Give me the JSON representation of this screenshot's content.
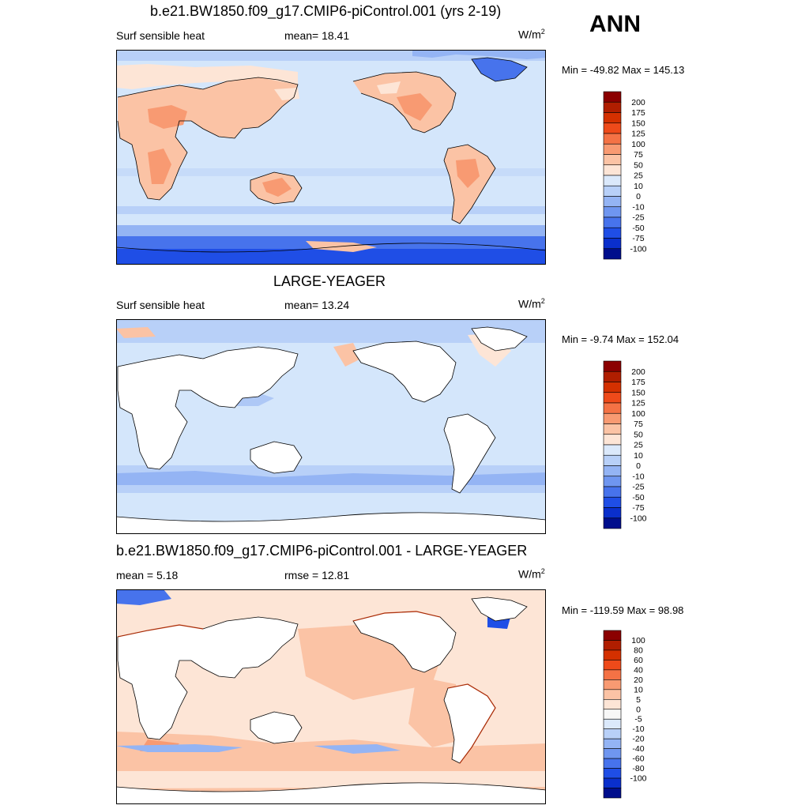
{
  "season": "ANN",
  "panels": [
    {
      "title": "b.e21.BW1850.f09_g17.CMIP6-piControl.001 (yrs 2-19)",
      "left_label": "Surf sensible heat",
      "center_label": "mean=  18.41",
      "units": "W/m",
      "units_sup": "2",
      "minmax": "Min = -49.82 Max = 145.13",
      "colorbar": {
        "colors": [
          "#8b0000",
          "#b01e00",
          "#d43000",
          "#ee4a1a",
          "#f47245",
          "#f89a72",
          "#fbc3a5",
          "#fde5d6",
          "#dbe9fb",
          "#b8d0f8",
          "#94b4f4",
          "#6f96f0",
          "#4773ec",
          "#1f4ee6",
          "#0a2fcc",
          "#000e8c"
        ],
        "labels": [
          "200",
          "175",
          "150",
          "125",
          "100",
          "75",
          "50",
          "25",
          "10",
          "0",
          "-10",
          "-25",
          "-50",
          "-75",
          "-100"
        ]
      }
    },
    {
      "title": "LARGE-YEAGER",
      "left_label": "Surf sensible heat",
      "center_label": "mean=  13.24",
      "units": "W/m",
      "units_sup": "2",
      "minmax": "Min =  -9.74 Max = 152.04",
      "colorbar": {
        "colors": [
          "#8b0000",
          "#b01e00",
          "#d43000",
          "#ee4a1a",
          "#f47245",
          "#f89a72",
          "#fbc3a5",
          "#fde5d6",
          "#dbe9fb",
          "#b8d0f8",
          "#94b4f4",
          "#6f96f0",
          "#4773ec",
          "#1f4ee6",
          "#0a2fcc",
          "#000e8c"
        ],
        "labels": [
          "200",
          "175",
          "150",
          "125",
          "100",
          "75",
          "50",
          "25",
          "10",
          "0",
          "-10",
          "-25",
          "-50",
          "-75",
          "-100"
        ]
      }
    },
    {
      "title": "b.e21.BW1850.f09_g17.CMIP6-piControl.001 - LARGE-YEAGER",
      "left_label": "mean =   5.18",
      "center_label": "rmse =  12.81",
      "units": "W/m",
      "units_sup": "2",
      "minmax": "Min = -119.59 Max =  98.98",
      "colorbar": {
        "colors": [
          "#8b0000",
          "#b01e00",
          "#d43000",
          "#ee4a1a",
          "#f47245",
          "#f89a72",
          "#fbc3a5",
          "#fde5d6",
          "#f7f7f7",
          "#dbe9fb",
          "#b8d0f8",
          "#94b4f4",
          "#6f96f0",
          "#4773ec",
          "#1f4ee6",
          "#0a2fcc",
          "#000e8c"
        ],
        "labels": [
          "100",
          "80",
          "60",
          "40",
          "20",
          "10",
          "5",
          "0",
          "-5",
          "-10",
          "-20",
          "-40",
          "-60",
          "-80",
          "-100"
        ]
      }
    }
  ]
}
